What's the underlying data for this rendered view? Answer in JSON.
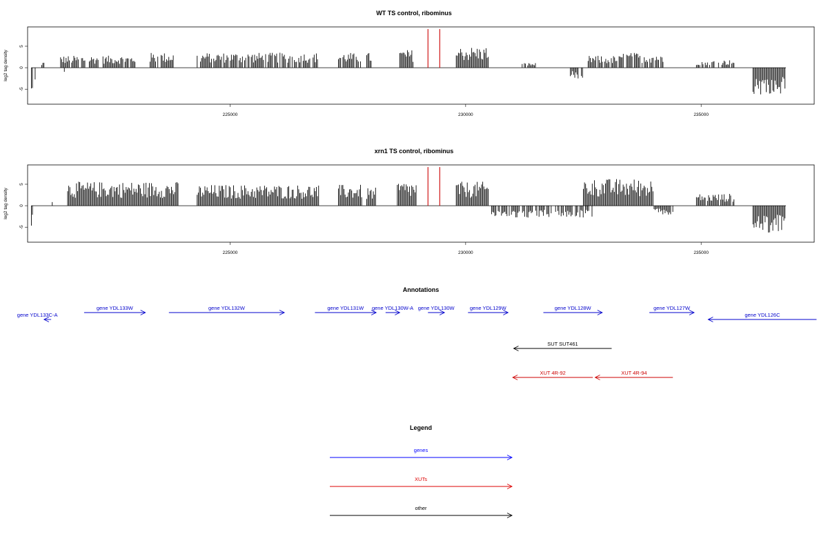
{
  "chart_data": [
    {
      "type": "bar",
      "title": "WT TS control, ribominus",
      "ylabel": "log2 tag density",
      "xlim": [
        220700,
        237400
      ],
      "ylim": [
        -8.5,
        9.5
      ],
      "yticks": [
        -5,
        0,
        5
      ],
      "xticks": [
        225000,
        230000,
        235000
      ],
      "grid": false,
      "regions": [
        {
          "start": 220780,
          "end": 220810,
          "value": -4.5
        },
        {
          "start": 220860,
          "end": 220880,
          "value": -2.5
        },
        {
          "start": 221000,
          "end": 221060,
          "value": 1.0
        },
        {
          "start": 221400,
          "end": 222200,
          "value": 2.0
        },
        {
          "start": 221480,
          "end": 221500,
          "value": -1.5
        },
        {
          "start": 222300,
          "end": 223000,
          "value": 2.0
        },
        {
          "start": 223300,
          "end": 223800,
          "value": 2.5
        },
        {
          "start": 224300,
          "end": 226900,
          "value": 2.5
        },
        {
          "start": 227300,
          "end": 227800,
          "value": 2.5
        },
        {
          "start": 227900,
          "end": 228000,
          "value": 2.5
        },
        {
          "start": 228600,
          "end": 228900,
          "value": 3.0
        },
        {
          "start": 229800,
          "end": 230500,
          "value": 3.5
        },
        {
          "start": 231200,
          "end": 231500,
          "value": 0.8
        },
        {
          "start": 232200,
          "end": 232500,
          "value": -1.8
        },
        {
          "start": 232600,
          "end": 233300,
          "value": 2.0
        },
        {
          "start": 233300,
          "end": 234200,
          "value": 2.5
        },
        {
          "start": 234900,
          "end": 235700,
          "value": 1.3
        },
        {
          "start": 236100,
          "end": 236800,
          "value": -4.5
        }
      ],
      "highlights": [
        {
          "x": 229200,
          "top": 9,
          "color": "#cc0000"
        },
        {
          "x": 229450,
          "top": 9,
          "color": "#cc0000"
        }
      ]
    },
    {
      "type": "bar",
      "title": "xrn1 TS control, ribominus",
      "ylabel": "log2 tag density",
      "xlim": [
        220700,
        237400
      ],
      "ylim": [
        -8.5,
        9.5
      ],
      "yticks": [
        -5,
        0,
        5
      ],
      "xticks": [
        225000,
        230000,
        235000
      ],
      "grid": false,
      "regions": [
        {
          "start": 220780,
          "end": 220810,
          "value": -4.5
        },
        {
          "start": 221200,
          "end": 221240,
          "value": 1.5
        },
        {
          "start": 221550,
          "end": 223900,
          "value": 4.0
        },
        {
          "start": 224300,
          "end": 226900,
          "value": 3.5
        },
        {
          "start": 227300,
          "end": 227800,
          "value": 3.5
        },
        {
          "start": 227900,
          "end": 228100,
          "value": 3.0
        },
        {
          "start": 228550,
          "end": 228950,
          "value": 4.0
        },
        {
          "start": 229800,
          "end": 230500,
          "value": 4.0
        },
        {
          "start": 230550,
          "end": 232700,
          "value": -2.0
        },
        {
          "start": 232500,
          "end": 234000,
          "value": 4.5
        },
        {
          "start": 234000,
          "end": 234400,
          "value": -1.5
        },
        {
          "start": 234900,
          "end": 235700,
          "value": 2.0
        },
        {
          "start": 236100,
          "end": 236800,
          "value": -4.5
        }
      ],
      "highlights": [
        {
          "x": 229200,
          "top": 9,
          "color": "#cc0000"
        },
        {
          "x": 229450,
          "top": 9,
          "color": "#cc0000"
        }
      ]
    }
  ],
  "annotations": {
    "title": "Annotations",
    "tracks": [
      [
        {
          "label": "gene YDL133C-A",
          "start": 221050,
          "end": 221200,
          "dir": "left",
          "color": "#0000cc",
          "row": 1
        },
        {
          "label": "gene YDL133W",
          "start": 221900,
          "end": 223200,
          "dir": "right",
          "color": "#0000cc",
          "row": 0
        },
        {
          "label": "gene YDL132W",
          "start": 223700,
          "end": 226150,
          "dir": "right",
          "color": "#0000cc",
          "row": 0
        },
        {
          "label": "gene YDL131W",
          "start": 226800,
          "end": 228100,
          "dir": "right",
          "color": "#0000cc",
          "row": 0
        },
        {
          "label": "gene YDL130W-A",
          "start": 228300,
          "end": 228600,
          "dir": "right",
          "color": "#0000cc",
          "row": 0
        },
        {
          "label": "gene YDL130W",
          "start": 229200,
          "end": 229550,
          "dir": "right",
          "color": "#0000cc",
          "row": 0
        },
        {
          "label": "gene YDL129W",
          "start": 230050,
          "end": 230900,
          "dir": "right",
          "color": "#0000cc",
          "row": 0
        },
        {
          "label": "gene YDL128W",
          "start": 231650,
          "end": 232900,
          "dir": "right",
          "color": "#0000cc",
          "row": 0
        },
        {
          "label": "gene YDL127W",
          "start": 233900,
          "end": 234850,
          "dir": "right",
          "color": "#0000cc",
          "row": 0
        },
        {
          "label": "gene YDL126C",
          "start": 235150,
          "end": 237450,
          "dir": "left",
          "color": "#0000cc",
          "row": 1
        }
      ],
      [
        {
          "label": "SUT SUT461",
          "start": 231020,
          "end": 233100,
          "dir": "left",
          "color": "#000000",
          "row": 0
        }
      ],
      [
        {
          "label": "XUT 4R-92",
          "start": 231000,
          "end": 232700,
          "dir": "left",
          "color": "#cc0000",
          "row": 0
        },
        {
          "label": "XUT 4R-94",
          "start": 232750,
          "end": 234400,
          "dir": "left",
          "color": "#cc0000",
          "row": 0
        }
      ]
    ]
  },
  "legend": {
    "title": "Legend",
    "items": [
      {
        "label": "genes",
        "color": "#0000ff"
      },
      {
        "label": "XUTs",
        "color": "#dd0000"
      },
      {
        "label": "other",
        "color": "#000000"
      }
    ]
  }
}
